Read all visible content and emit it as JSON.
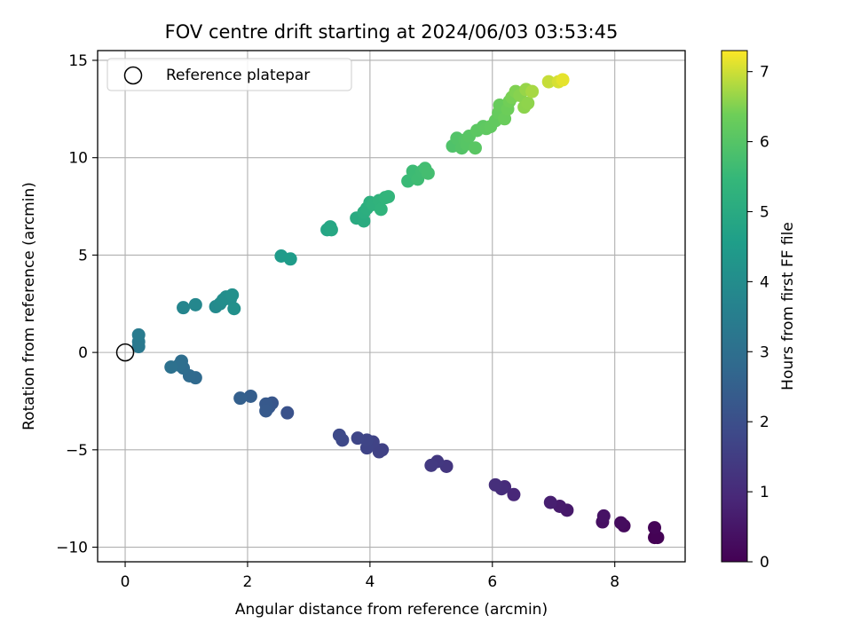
{
  "chart_data": {
    "type": "scatter",
    "title": "FOV centre drift starting at 2024/06/03 03:53:45",
    "xlabel": "Angular distance from reference (arcmin)",
    "ylabel": "Rotation from reference (arcmin)",
    "xlim": [
      -0.45,
      9.15
    ],
    "ylim": [
      -10.75,
      15.5
    ],
    "xticks": [
      0,
      2,
      4,
      6,
      8
    ],
    "yticks": [
      -10,
      -5,
      0,
      5,
      10,
      15
    ],
    "grid": true,
    "legend": {
      "placement": "top-left",
      "entries": [
        "Reference platepar"
      ]
    },
    "reference_point": {
      "label": "Reference platepar",
      "x": 0,
      "y": 0,
      "marker": "open-circle"
    },
    "colorbar": {
      "label": "Hours from first FF file",
      "colormap": "viridis",
      "range": [
        0,
        7.3
      ],
      "ticks": [
        0,
        1,
        2,
        3,
        4,
        5,
        6,
        7
      ]
    },
    "series": [
      {
        "points": [
          [
            8.65,
            -9.5,
            0.0
          ],
          [
            8.7,
            -9.5,
            0.03
          ],
          [
            8.65,
            -9.0,
            0.07
          ],
          [
            8.15,
            -8.9,
            0.2
          ],
          [
            8.1,
            -8.75,
            0.25
          ],
          [
            7.8,
            -8.7,
            0.35
          ],
          [
            7.82,
            -8.4,
            0.4
          ],
          [
            7.22,
            -8.1,
            0.55
          ],
          [
            7.1,
            -7.9,
            0.6
          ],
          [
            6.95,
            -7.7,
            0.7
          ],
          [
            6.35,
            -7.3,
            0.9
          ],
          [
            6.2,
            -6.9,
            1.0
          ],
          [
            6.15,
            -7.0,
            1.05
          ],
          [
            6.05,
            -6.8,
            1.1
          ],
          [
            5.25,
            -5.85,
            1.3
          ],
          [
            5.1,
            -5.6,
            1.35
          ],
          [
            5.0,
            -5.8,
            1.4
          ],
          [
            4.2,
            -5.0,
            1.6
          ],
          [
            4.15,
            -5.1,
            1.63
          ],
          [
            4.05,
            -4.6,
            1.67
          ],
          [
            3.95,
            -4.9,
            1.7
          ],
          [
            3.95,
            -4.5,
            1.72
          ],
          [
            3.8,
            -4.4,
            1.75
          ],
          [
            3.55,
            -4.5,
            1.82
          ],
          [
            3.5,
            -4.25,
            1.85
          ],
          [
            2.65,
            -3.1,
            2.1
          ],
          [
            2.4,
            -2.6,
            2.2
          ],
          [
            2.35,
            -2.8,
            2.25
          ],
          [
            2.3,
            -2.65,
            2.3
          ],
          [
            2.3,
            -3.0,
            2.33
          ],
          [
            2.05,
            -2.25,
            2.45
          ],
          [
            1.88,
            -2.35,
            2.5
          ],
          [
            1.15,
            -1.3,
            2.8
          ],
          [
            1.05,
            -1.2,
            2.85
          ],
          [
            0.95,
            -0.8,
            2.9
          ],
          [
            0.92,
            -0.45,
            2.95
          ],
          [
            0.88,
            -0.65,
            3.0
          ],
          [
            0.75,
            -0.75,
            3.05
          ],
          [
            0.22,
            0.3,
            3.3
          ],
          [
            0.22,
            0.55,
            3.35
          ],
          [
            0.22,
            0.9,
            3.4
          ],
          [
            0.95,
            2.3,
            3.75
          ],
          [
            1.15,
            2.45,
            3.8
          ],
          [
            1.48,
            2.35,
            3.9
          ],
          [
            1.55,
            2.5,
            3.95
          ],
          [
            1.6,
            2.7,
            4.0
          ],
          [
            1.65,
            2.85,
            4.03
          ],
          [
            1.72,
            2.75,
            4.05
          ],
          [
            1.75,
            2.95,
            4.1
          ],
          [
            1.78,
            2.25,
            4.12
          ],
          [
            2.55,
            4.95,
            4.45
          ],
          [
            2.7,
            4.8,
            4.5
          ],
          [
            3.3,
            6.3,
            4.8
          ],
          [
            3.35,
            6.45,
            4.85
          ],
          [
            3.37,
            6.3,
            4.88
          ],
          [
            3.78,
            6.9,
            5.0
          ],
          [
            3.9,
            6.75,
            5.05
          ],
          [
            3.9,
            7.2,
            5.1
          ],
          [
            3.95,
            7.4,
            5.15
          ],
          [
            4.0,
            7.7,
            5.2
          ],
          [
            4.05,
            7.6,
            5.25
          ],
          [
            4.15,
            7.8,
            5.3
          ],
          [
            4.18,
            7.35,
            5.32
          ],
          [
            4.25,
            7.95,
            5.35
          ],
          [
            4.3,
            8.0,
            5.38
          ],
          [
            4.62,
            8.8,
            5.55
          ],
          [
            4.7,
            9.3,
            5.6
          ],
          [
            4.78,
            8.9,
            5.63
          ],
          [
            4.85,
            9.3,
            5.65
          ],
          [
            4.9,
            9.45,
            5.7
          ],
          [
            4.95,
            9.2,
            5.73
          ],
          [
            5.35,
            10.6,
            5.9
          ],
          [
            5.42,
            11.0,
            5.95
          ],
          [
            5.5,
            10.5,
            5.97
          ],
          [
            5.55,
            10.9,
            6.0
          ],
          [
            5.58,
            10.7,
            6.02
          ],
          [
            5.62,
            11.1,
            6.05
          ],
          [
            5.72,
            10.5,
            6.07
          ],
          [
            5.75,
            11.4,
            6.1
          ],
          [
            5.85,
            11.6,
            6.12
          ],
          [
            5.9,
            11.5,
            6.15
          ],
          [
            5.97,
            11.6,
            6.18
          ],
          [
            6.05,
            11.9,
            6.2
          ],
          [
            6.1,
            12.3,
            6.25
          ],
          [
            6.12,
            12.7,
            6.28
          ],
          [
            6.2,
            12.0,
            6.3
          ],
          [
            6.25,
            12.5,
            6.35
          ],
          [
            6.28,
            12.9,
            6.4
          ],
          [
            6.32,
            13.1,
            6.45
          ],
          [
            6.38,
            13.4,
            6.5
          ],
          [
            6.45,
            13.2,
            6.55
          ],
          [
            6.52,
            12.6,
            6.58
          ],
          [
            6.55,
            13.5,
            6.65
          ],
          [
            6.58,
            12.8,
            6.6
          ],
          [
            6.65,
            13.4,
            6.75
          ],
          [
            6.92,
            13.9,
            6.95
          ],
          [
            7.08,
            13.9,
            7.05
          ],
          [
            7.15,
            14.0,
            7.15
          ]
        ]
      }
    ]
  }
}
